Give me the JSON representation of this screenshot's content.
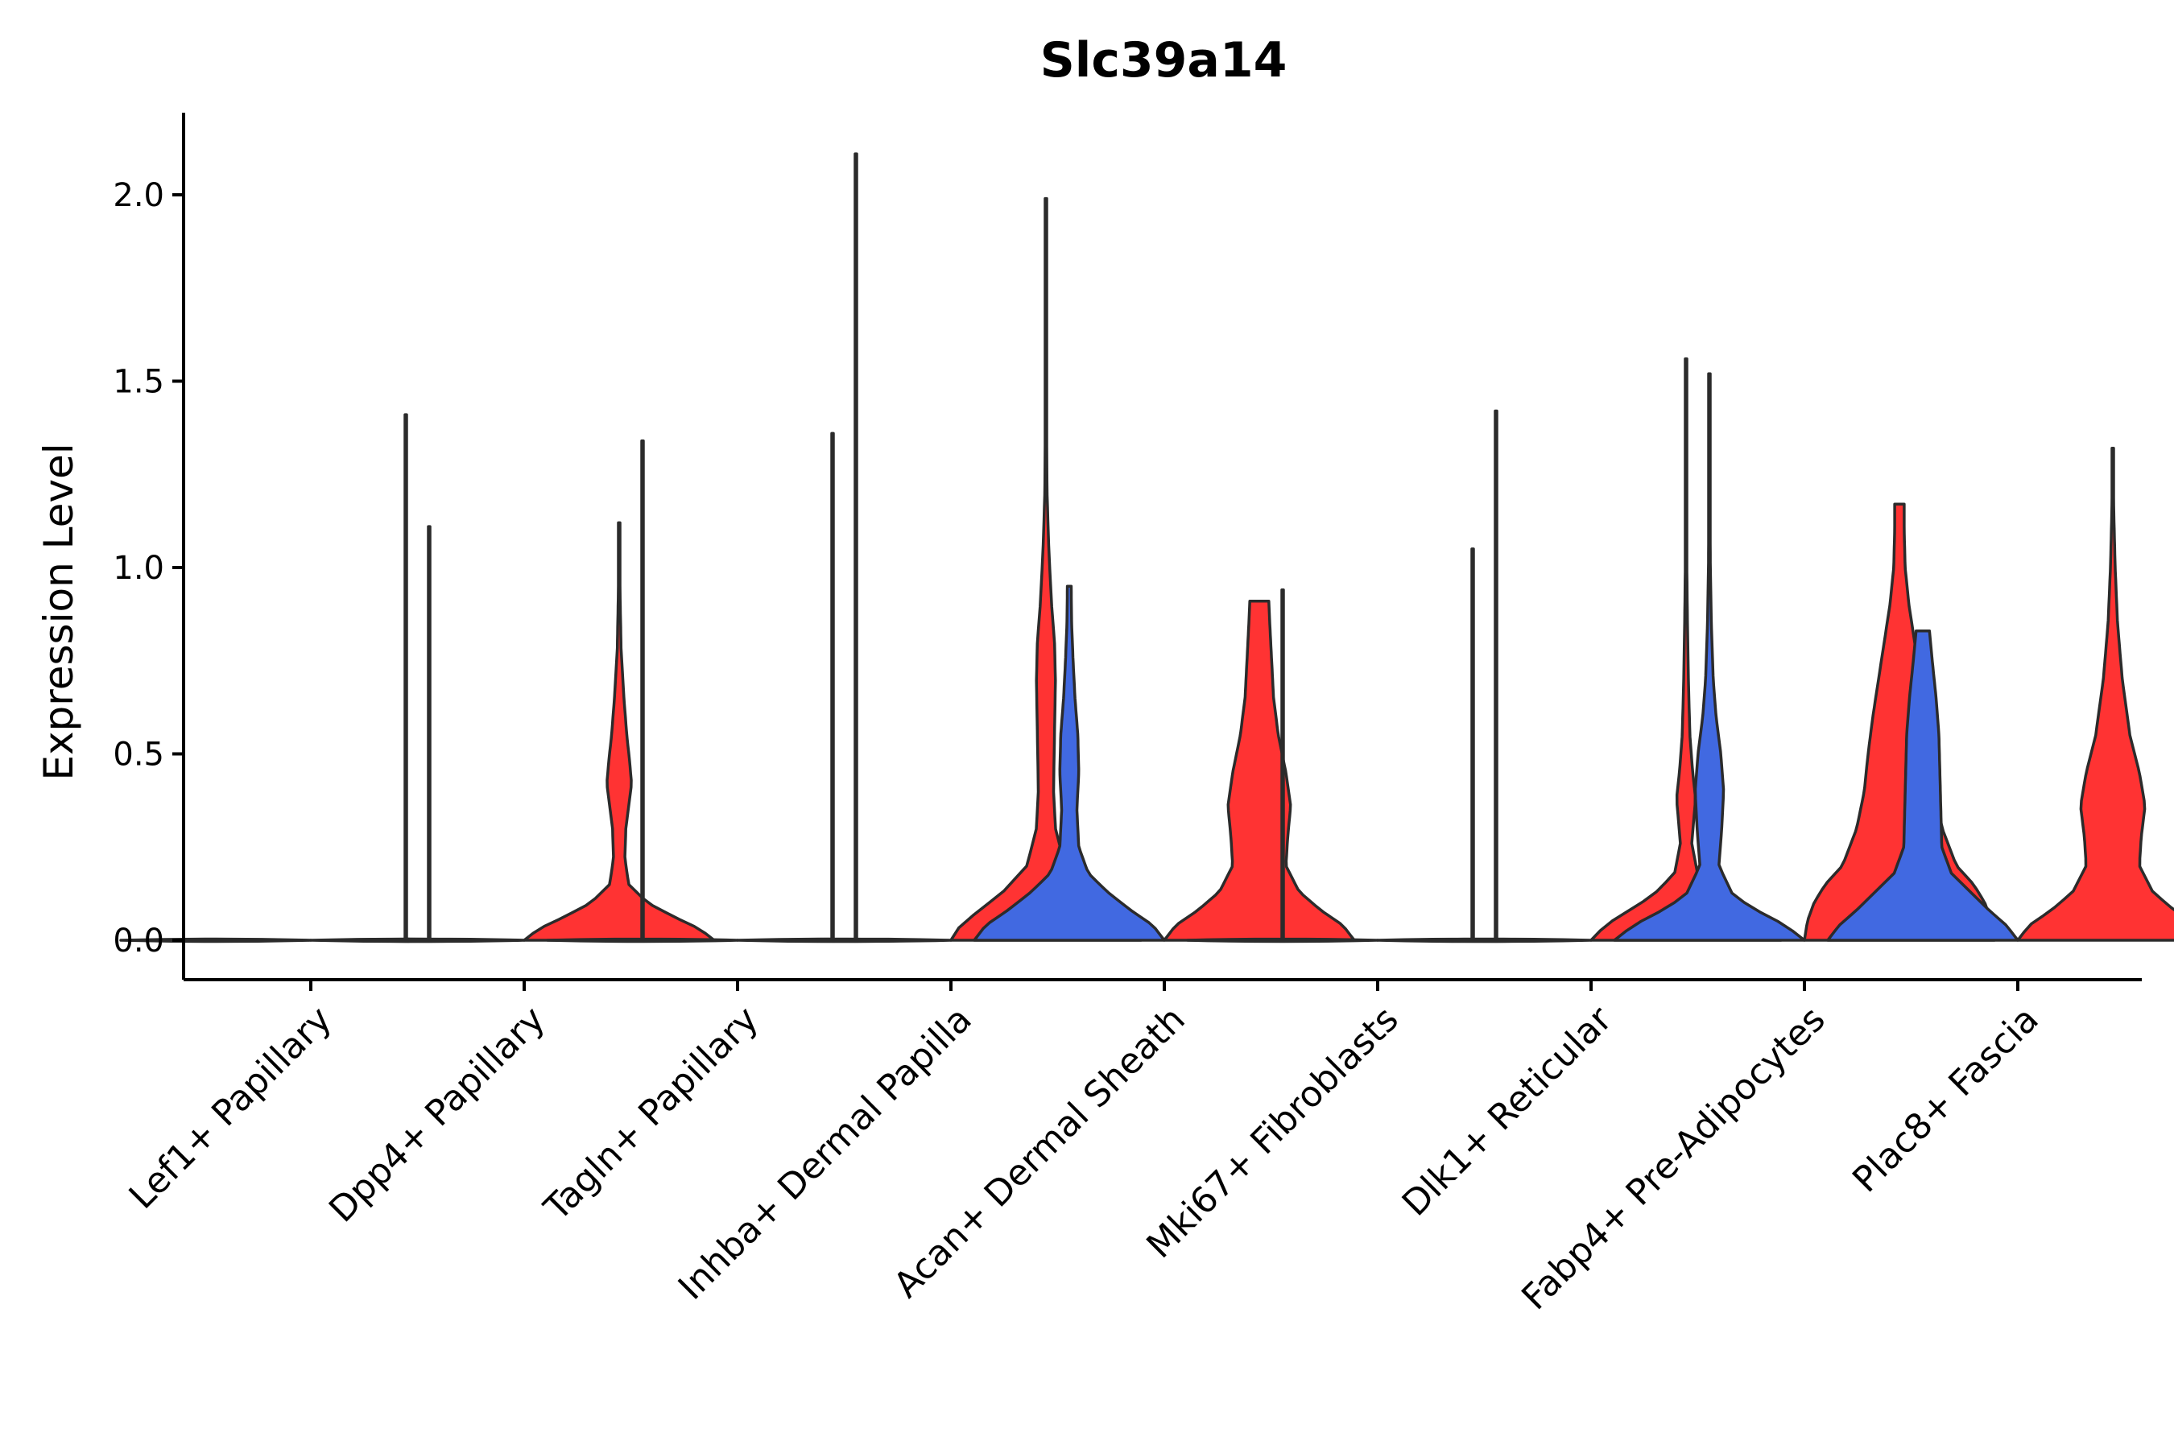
{
  "chart_data": {
    "type": "violin",
    "title": "Slc39a14",
    "xlabel": "",
    "ylabel": "Expression Level",
    "ylim": [
      -0.11,
      2.22
    ],
    "yticks": [
      "0.0",
      "0.5",
      "1.0",
      "1.5",
      "2.0"
    ],
    "grid": false,
    "legend": "none",
    "split_colors": {
      "left": "#4169E1",
      "right": "#FF3333",
      "outline": "#2b2b2b"
    },
    "categories": [
      "Lef1+ Papillary",
      "Dpp4+ Papillary",
      "Tagln+ Papillary",
      "Inhba+ Dermal Papilla",
      "Acan+ Dermal Sheath",
      "Mki67+ Fibroblasts",
      "Dlk1+ Reticular",
      "Fabp4+ Pre-Adipocytes",
      "Plac8+ Fascia"
    ],
    "groups": [
      {
        "category": "Lef1+ Papillary",
        "left": {
          "max": 0.0,
          "filled": false,
          "profile": [
            [
              0,
              1.0
            ]
          ]
        },
        "right": {
          "max": 1.41,
          "filled": false,
          "profile": [
            [
              0,
              1.0
            ]
          ]
        }
      },
      {
        "category": "Dpp4+ Papillary",
        "left": {
          "max": 1.11,
          "filled": false,
          "profile": [
            [
              0,
              1.0
            ]
          ]
        },
        "right": {
          "max": 1.12,
          "filled": true,
          "profile": [
            [
              0,
              1.0
            ],
            [
              0.03,
              0.85
            ],
            [
              0.06,
              0.6
            ],
            [
              0.1,
              0.3
            ],
            [
              0.15,
              0.1
            ],
            [
              0.22,
              0.06
            ],
            [
              0.3,
              0.07
            ],
            [
              0.36,
              0.1
            ],
            [
              0.42,
              0.13
            ],
            [
              0.48,
              0.11
            ],
            [
              0.55,
              0.08
            ],
            [
              0.65,
              0.05
            ],
            [
              0.78,
              0.02
            ],
            [
              0.95,
              0.008
            ],
            [
              1.12,
              0.004
            ]
          ]
        }
      },
      {
        "category": "Tagln+ Papillary",
        "left": {
          "max": 1.34,
          "filled": false,
          "profile": [
            [
              0,
              1.0
            ]
          ]
        },
        "right": {
          "max": 1.36,
          "filled": false,
          "profile": [
            [
              0,
              1.0
            ]
          ]
        }
      },
      {
        "category": "Inhba+ Dermal Papilla",
        "left": {
          "max": 2.11,
          "filled": false,
          "profile": [
            [
              0,
              1.0
            ]
          ]
        },
        "right": {
          "max": 1.99,
          "filled": true,
          "profile": [
            [
              0,
              1.0
            ],
            [
              0.04,
              0.9
            ],
            [
              0.08,
              0.7
            ],
            [
              0.13,
              0.45
            ],
            [
              0.2,
              0.2
            ],
            [
              0.3,
              0.1
            ],
            [
              0.4,
              0.08
            ],
            [
              0.55,
              0.09
            ],
            [
              0.7,
              0.1
            ],
            [
              0.8,
              0.09
            ],
            [
              0.9,
              0.06
            ],
            [
              1.05,
              0.03
            ],
            [
              1.2,
              0.012
            ],
            [
              1.5,
              0.004
            ],
            [
              1.99,
              0.002
            ]
          ]
        }
      },
      {
        "category": "Acan+ Dermal Sheath",
        "left": {
          "max": 0.95,
          "filled": true,
          "profile": [
            [
              0,
              1.0
            ],
            [
              0.04,
              0.88
            ],
            [
              0.08,
              0.65
            ],
            [
              0.13,
              0.4
            ],
            [
              0.18,
              0.2
            ],
            [
              0.25,
              0.1
            ],
            [
              0.35,
              0.08
            ],
            [
              0.45,
              0.1
            ],
            [
              0.55,
              0.09
            ],
            [
              0.65,
              0.06
            ],
            [
              0.75,
              0.04
            ],
            [
              0.85,
              0.025
            ],
            [
              0.95,
              0.02
            ]
          ]
        },
        "right": {
          "max": 0.91,
          "filled": true,
          "profile": [
            [
              0,
              1.0
            ],
            [
              0.04,
              0.88
            ],
            [
              0.08,
              0.65
            ],
            [
              0.13,
              0.42
            ],
            [
              0.2,
              0.28
            ],
            [
              0.28,
              0.3
            ],
            [
              0.36,
              0.33
            ],
            [
              0.45,
              0.28
            ],
            [
              0.55,
              0.2
            ],
            [
              0.65,
              0.15
            ],
            [
              0.75,
              0.13
            ],
            [
              0.85,
              0.11
            ],
            [
              0.91,
              0.1
            ]
          ]
        }
      },
      {
        "category": "Mki67+ Fibroblasts",
        "left": {
          "max": 0.94,
          "filled": false,
          "profile": [
            [
              0,
              1.0
            ]
          ]
        },
        "right": {
          "max": 1.05,
          "filled": false,
          "profile": [
            [
              0,
              1.0
            ]
          ]
        }
      },
      {
        "category": "Dlk1+ Reticular",
        "left": {
          "max": 1.42,
          "filled": false,
          "profile": [
            [
              0,
              1.0
            ]
          ]
        },
        "right": {
          "max": 1.56,
          "filled": true,
          "profile": [
            [
              0,
              1.0
            ],
            [
              0.04,
              0.85
            ],
            [
              0.08,
              0.6
            ],
            [
              0.12,
              0.35
            ],
            [
              0.18,
              0.12
            ],
            [
              0.26,
              0.06
            ],
            [
              0.32,
              0.08
            ],
            [
              0.38,
              0.1
            ],
            [
              0.45,
              0.07
            ],
            [
              0.55,
              0.04
            ],
            [
              0.7,
              0.025
            ],
            [
              0.85,
              0.015
            ],
            [
              1.0,
              0.008
            ],
            [
              1.2,
              0.004
            ],
            [
              1.56,
              0.002
            ]
          ]
        }
      },
      {
        "category": "Fabp4+ Pre-Adipocytes",
        "left": {
          "max": 1.52,
          "filled": true,
          "profile": [
            [
              0,
              1.0
            ],
            [
              0.04,
              0.8
            ],
            [
              0.08,
              0.5
            ],
            [
              0.12,
              0.25
            ],
            [
              0.2,
              0.1
            ],
            [
              0.3,
              0.13
            ],
            [
              0.4,
              0.15
            ],
            [
              0.5,
              0.12
            ],
            [
              0.6,
              0.07
            ],
            [
              0.7,
              0.04
            ],
            [
              0.85,
              0.02
            ],
            [
              1.0,
              0.01
            ],
            [
              1.2,
              0.005
            ],
            [
              1.52,
              0.002
            ]
          ]
        },
        "right": {
          "max": 1.17,
          "filled": true,
          "profile": [
            [
              0,
              1.0
            ],
            [
              0.05,
              0.97
            ],
            [
              0.1,
              0.9
            ],
            [
              0.15,
              0.78
            ],
            [
              0.2,
              0.6
            ],
            [
              0.3,
              0.45
            ],
            [
              0.4,
              0.37
            ],
            [
              0.5,
              0.33
            ],
            [
              0.6,
              0.28
            ],
            [
              0.7,
              0.22
            ],
            [
              0.8,
              0.16
            ],
            [
              0.9,
              0.1
            ],
            [
              1.0,
              0.06
            ],
            [
              1.1,
              0.05
            ],
            [
              1.17,
              0.05
            ]
          ]
        }
      },
      {
        "category": "Plac8+ Fascia",
        "left": {
          "max": 0.83,
          "filled": true,
          "profile": [
            [
              0,
              1.0
            ],
            [
              0.04,
              0.88
            ],
            [
              0.08,
              0.7
            ],
            [
              0.13,
              0.5
            ],
            [
              0.18,
              0.3
            ],
            [
              0.25,
              0.2
            ],
            [
              0.35,
              0.19
            ],
            [
              0.45,
              0.18
            ],
            [
              0.55,
              0.17
            ],
            [
              0.65,
              0.14
            ],
            [
              0.75,
              0.1
            ],
            [
              0.83,
              0.07
            ]
          ]
        },
        "right": {
          "max": 1.32,
          "filled": true,
          "profile": [
            [
              0,
              1.0
            ],
            [
              0.04,
              0.88
            ],
            [
              0.08,
              0.65
            ],
            [
              0.13,
              0.42
            ],
            [
              0.2,
              0.28
            ],
            [
              0.28,
              0.3
            ],
            [
              0.36,
              0.34
            ],
            [
              0.45,
              0.28
            ],
            [
              0.55,
              0.18
            ],
            [
              0.7,
              0.1
            ],
            [
              0.85,
              0.05
            ],
            [
              1.0,
              0.025
            ],
            [
              1.15,
              0.01
            ],
            [
              1.32,
              0.004
            ]
          ]
        }
      }
    ]
  }
}
